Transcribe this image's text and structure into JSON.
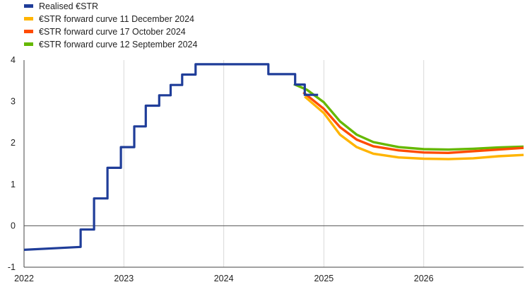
{
  "chart_data": {
    "type": "line",
    "title": "",
    "xlabel": "",
    "ylabel": "",
    "xlim": [
      "2022-01-01",
      "2027-01-01"
    ],
    "ylim": [
      -1,
      4
    ],
    "yticks": [
      4,
      3,
      2,
      1,
      0,
      -1
    ],
    "xticks": [
      "2022",
      "2023",
      "2024",
      "2025",
      "2026"
    ],
    "grid": "vertical",
    "legend_position": "top-left",
    "series": [
      {
        "name": "Realised €STR",
        "color": "#1f3d99",
        "step": true,
        "points": [
          [
            "2022-01-01",
            -0.58
          ],
          [
            "2022-07-27",
            -0.51
          ],
          [
            "2022-07-27",
            -0.09
          ],
          [
            "2022-09-14",
            -0.09
          ],
          [
            "2022-09-14",
            0.66
          ],
          [
            "2022-11-02",
            0.66
          ],
          [
            "2022-11-02",
            1.4
          ],
          [
            "2022-12-21",
            1.4
          ],
          [
            "2022-12-21",
            1.9
          ],
          [
            "2023-02-08",
            1.9
          ],
          [
            "2023-02-08",
            2.4
          ],
          [
            "2023-03-22",
            2.4
          ],
          [
            "2023-03-22",
            2.9
          ],
          [
            "2023-05-10",
            2.9
          ],
          [
            "2023-05-10",
            3.15
          ],
          [
            "2023-06-21",
            3.15
          ],
          [
            "2023-06-21",
            3.4
          ],
          [
            "2023-08-02",
            3.4
          ],
          [
            "2023-08-02",
            3.65
          ],
          [
            "2023-09-20",
            3.65
          ],
          [
            "2023-09-20",
            3.9
          ],
          [
            "2024-06-12",
            3.9
          ],
          [
            "2024-06-12",
            3.66
          ],
          [
            "2024-09-18",
            3.66
          ],
          [
            "2024-09-18",
            3.41
          ],
          [
            "2024-10-23",
            3.41
          ],
          [
            "2024-10-23",
            3.16
          ],
          [
            "2024-12-11",
            3.16
          ]
        ]
      },
      {
        "name": "€STR forward curve 11 December 2024",
        "color": "#ffb400",
        "step": false,
        "points": [
          [
            "2024-10-23",
            3.12
          ],
          [
            "2025-01-01",
            2.72
          ],
          [
            "2025-03-01",
            2.2
          ],
          [
            "2025-05-01",
            1.9
          ],
          [
            "2025-07-01",
            1.74
          ],
          [
            "2025-10-01",
            1.65
          ],
          [
            "2026-01-01",
            1.62
          ],
          [
            "2026-04-01",
            1.61
          ],
          [
            "2026-07-01",
            1.63
          ],
          [
            "2026-10-01",
            1.68
          ],
          [
            "2027-01-01",
            1.71
          ]
        ]
      },
      {
        "name": "€STR forward curve 17 October 2024",
        "color": "#ff4b00",
        "step": false,
        "points": [
          [
            "2024-10-18",
            3.22
          ],
          [
            "2025-01-01",
            2.82
          ],
          [
            "2025-03-01",
            2.38
          ],
          [
            "2025-05-01",
            2.08
          ],
          [
            "2025-07-01",
            1.92
          ],
          [
            "2025-10-01",
            1.82
          ],
          [
            "2026-01-01",
            1.77
          ],
          [
            "2026-04-01",
            1.76
          ],
          [
            "2026-07-01",
            1.8
          ],
          [
            "2026-10-01",
            1.84
          ],
          [
            "2027-01-01",
            1.88
          ]
        ]
      },
      {
        "name": "€STR forward curve 12 September 2024",
        "color": "#65b800",
        "step": false,
        "points": [
          [
            "2024-09-13",
            3.42
          ],
          [
            "2024-11-01",
            3.28
          ],
          [
            "2025-01-01",
            2.98
          ],
          [
            "2025-03-01",
            2.52
          ],
          [
            "2025-05-01",
            2.2
          ],
          [
            "2025-07-01",
            2.02
          ],
          [
            "2025-10-01",
            1.9
          ],
          [
            "2026-01-01",
            1.85
          ],
          [
            "2026-04-01",
            1.84
          ],
          [
            "2026-07-01",
            1.86
          ],
          [
            "2026-10-01",
            1.89
          ],
          [
            "2027-01-01",
            1.91
          ]
        ]
      }
    ]
  }
}
